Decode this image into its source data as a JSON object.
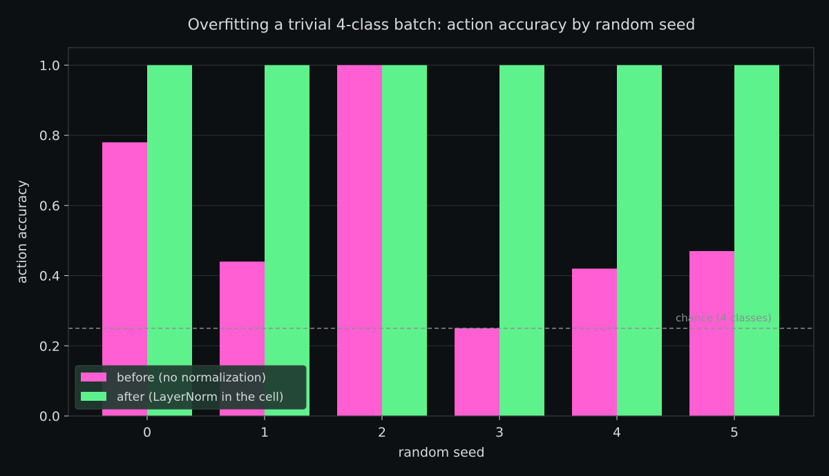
{
  "chart_data": {
    "type": "bar",
    "title": "Overfitting a trivial 4-class batch: action accuracy by random seed",
    "xlabel": "random seed",
    "ylabel": "action accuracy",
    "categories": [
      "0",
      "1",
      "2",
      "3",
      "4",
      "5"
    ],
    "series": [
      {
        "name": "before (no normalization)",
        "color": "#ff5fd2",
        "values": [
          0.78,
          0.44,
          1.0,
          0.25,
          0.42,
          0.47
        ]
      },
      {
        "name": "after (LayerNorm in the cell)",
        "color": "#5ef28c",
        "values": [
          1.0,
          1.0,
          1.0,
          1.0,
          1.0,
          1.0
        ]
      }
    ],
    "ylim": [
      0,
      1.05
    ],
    "yticks": [
      "0.0",
      "0.2",
      "0.4",
      "0.6",
      "0.8",
      "1.0"
    ],
    "grid": true,
    "legend_position": "bottom-left",
    "reference_line": {
      "y": 0.25,
      "label": "chance (4 classes)",
      "style": "dashed",
      "color": "#8a8e92"
    },
    "colors": {
      "background": "#0d1012",
      "grid": "#2e3235",
      "axes": "#3a3e42",
      "text": "#d6d8da"
    }
  }
}
